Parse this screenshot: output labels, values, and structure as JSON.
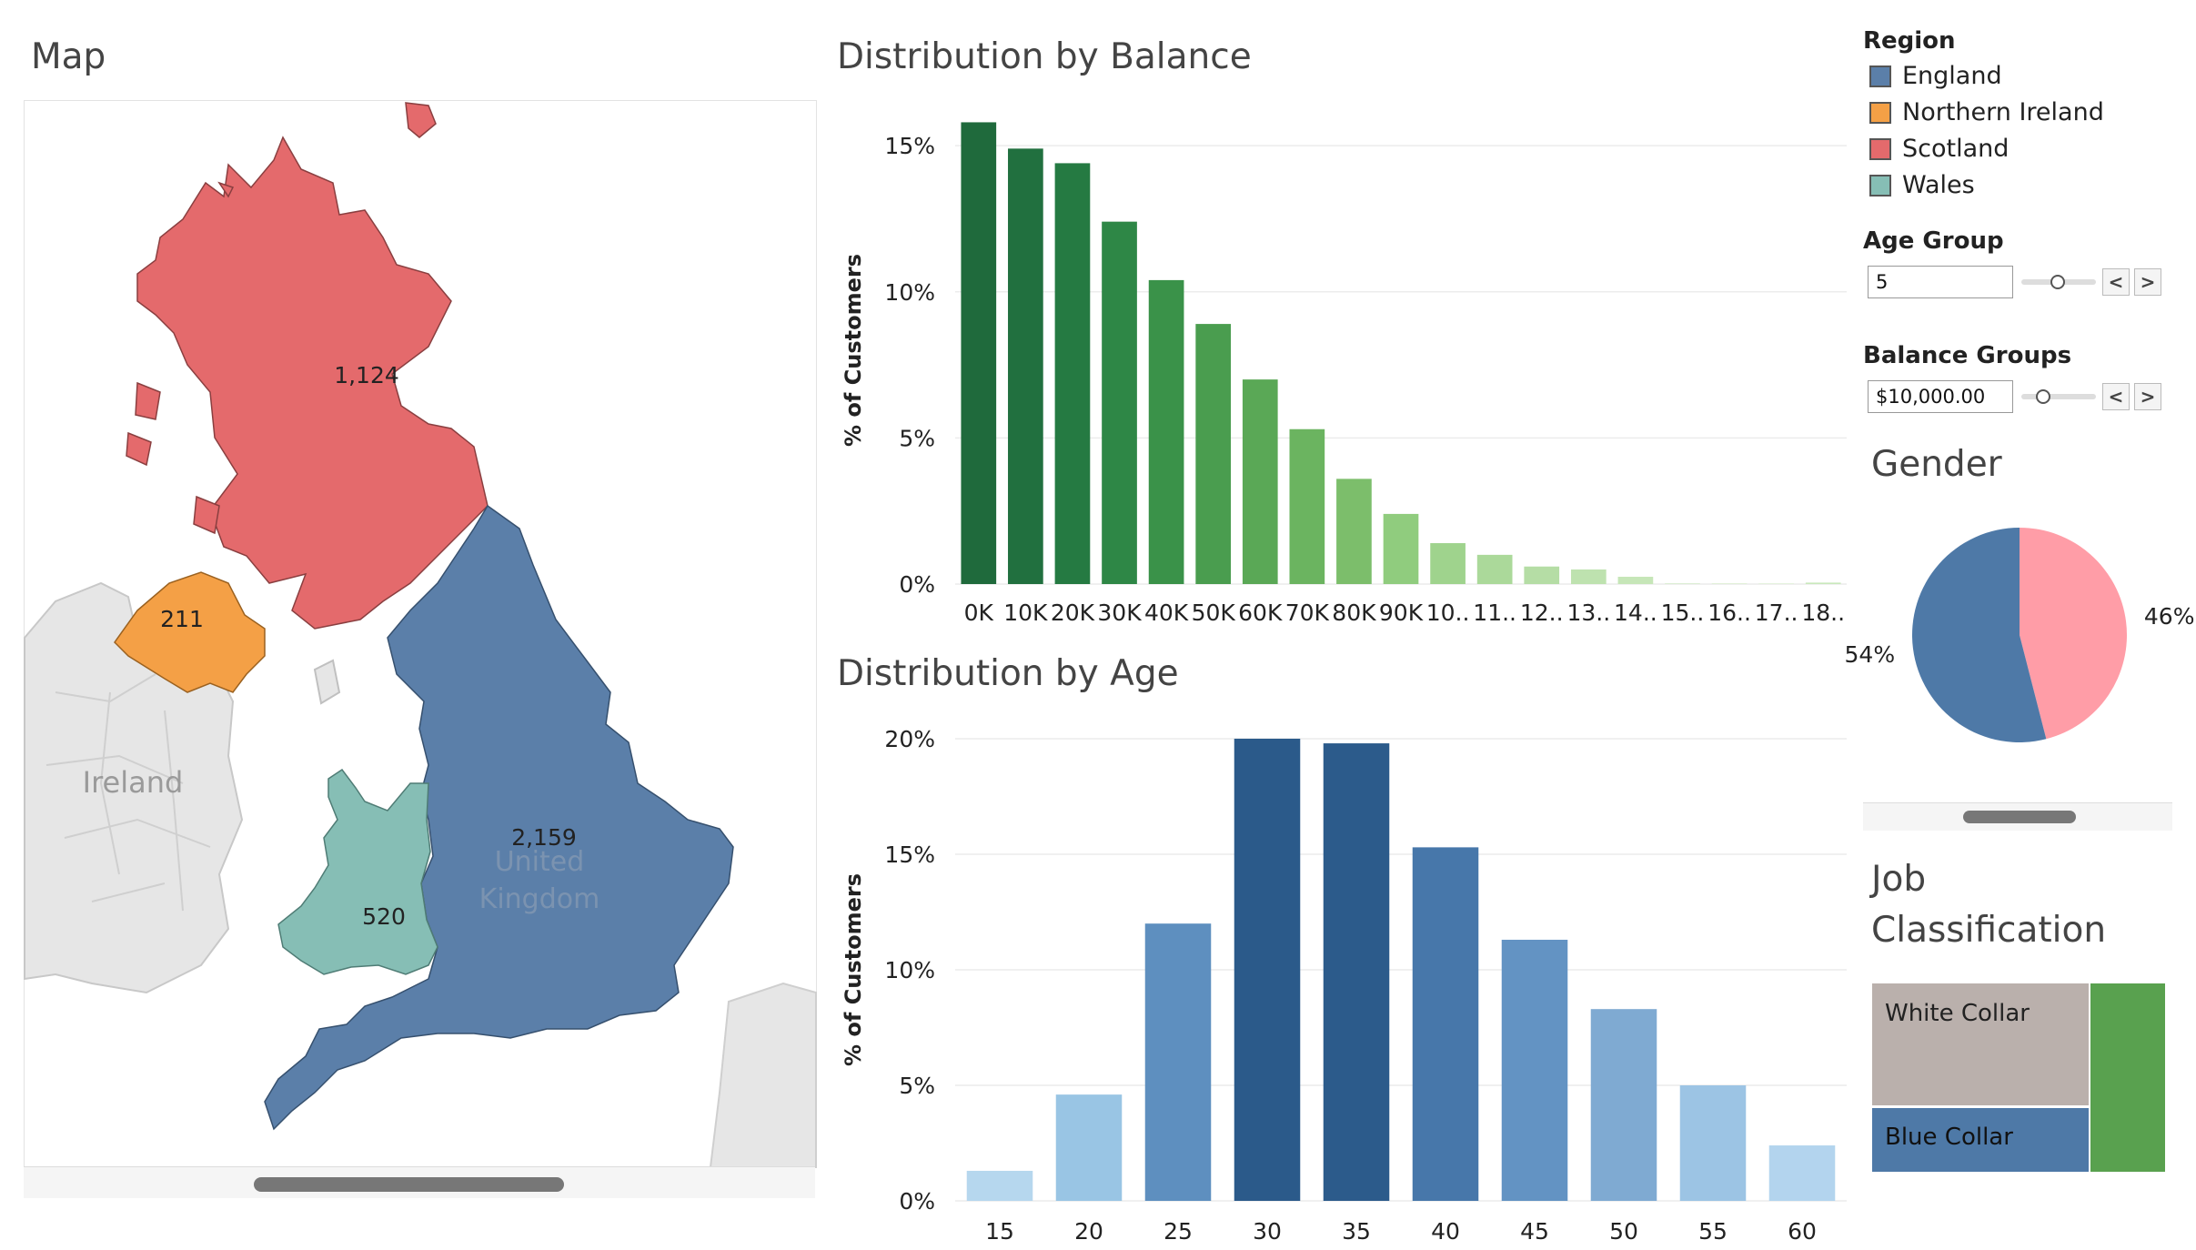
{
  "map": {
    "title": "Map",
    "labels": {
      "scotland": "1,124",
      "northern_ireland": "211",
      "wales": "520",
      "england": "2,159",
      "ireland": "Ireland",
      "uk_line1": "United",
      "uk_line2": "Kingdom"
    },
    "colors": {
      "England": "#5B7FA9",
      "Northern Ireland": "#F4A046",
      "Scotland": "#E46A6C",
      "Wales": "#86BEB5",
      "land": "#E6E6E6"
    }
  },
  "legend": {
    "title": "Region",
    "items": [
      {
        "label": "England",
        "color": "#5B7FA9"
      },
      {
        "label": "Northern Ireland",
        "color": "#F4A046"
      },
      {
        "label": "Scotland",
        "color": "#E46A6C"
      },
      {
        "label": "Wales",
        "color": "#86BEB5"
      }
    ]
  },
  "controls": {
    "age_group": {
      "label": "Age Group",
      "value": "5"
    },
    "balance_groups": {
      "label": "Balance Groups",
      "value": "$10,000.00"
    },
    "prev_icon": "<",
    "next_icon": ">"
  },
  "gender": {
    "title": "Gender",
    "left_label": "54%",
    "right_label": "46%"
  },
  "job": {
    "title_line1": "Job",
    "title_line2": "Classification",
    "white_collar": "White Collar",
    "blue_collar": "Blue Collar"
  },
  "chart_data": [
    {
      "type": "bar",
      "title": "Distribution by Balance",
      "ylabel": "% of Customers",
      "categories": [
        "0K",
        "10K",
        "20K",
        "30K",
        "40K",
        "50K",
        "60K",
        "70K",
        "80K",
        "90K",
        "10..",
        "11..",
        "12..",
        "13..",
        "14..",
        "15..",
        "16..",
        "17..",
        "18.."
      ],
      "values": [
        15.8,
        14.9,
        14.4,
        12.4,
        10.4,
        8.9,
        7.0,
        5.3,
        3.6,
        2.4,
        1.4,
        1.0,
        0.6,
        0.5,
        0.25,
        0.02,
        0.02,
        0.02,
        0.05
      ],
      "ylim": [
        0,
        16
      ],
      "yticks": [
        0,
        5,
        10,
        15
      ],
      "ytick_labels": [
        "0%",
        "5%",
        "10%",
        "15%"
      ],
      "colors": [
        "#1F6A3C",
        "#21703F",
        "#257A42",
        "#2E8746",
        "#3A9249",
        "#4A9D4F",
        "#5AA856",
        "#6BB460",
        "#7CBE6B",
        "#90CC7E",
        "#9FD38D",
        "#ABD99A",
        "#B5DDA5",
        "#BEE2AF",
        "#C6E6B8",
        "#CFEAC1",
        "#D6EDC9",
        "#DCF0D0",
        "#C9E8BB"
      ],
      "grid": true
    },
    {
      "type": "bar",
      "title": "Distribution by Age",
      "ylabel": "% of Customers",
      "categories": [
        "15",
        "20",
        "25",
        "30",
        "35",
        "40",
        "45",
        "50",
        "55",
        "60"
      ],
      "values": [
        1.3,
        4.6,
        12.0,
        20.0,
        19.8,
        15.3,
        11.3,
        8.3,
        5.0,
        2.4
      ],
      "ylim": [
        0,
        20
      ],
      "yticks": [
        0,
        5,
        10,
        15,
        20
      ],
      "ytick_labels": [
        "0%",
        "5%",
        "10%",
        "15%",
        "20%"
      ],
      "colors": [
        "#B6D7EE",
        "#99C5E4",
        "#5E8FBF",
        "#2B5A8A",
        "#2C5B8B",
        "#4777AA",
        "#6393C3",
        "#7FAAD2",
        "#9CC4E4",
        "#B3D4EE"
      ],
      "grid": true
    },
    {
      "type": "pie",
      "title": "Gender",
      "labels": [
        "54%",
        "46%"
      ],
      "values": [
        54,
        46
      ],
      "colors": [
        "#4E79A7",
        "#FF9DA7"
      ]
    }
  ]
}
